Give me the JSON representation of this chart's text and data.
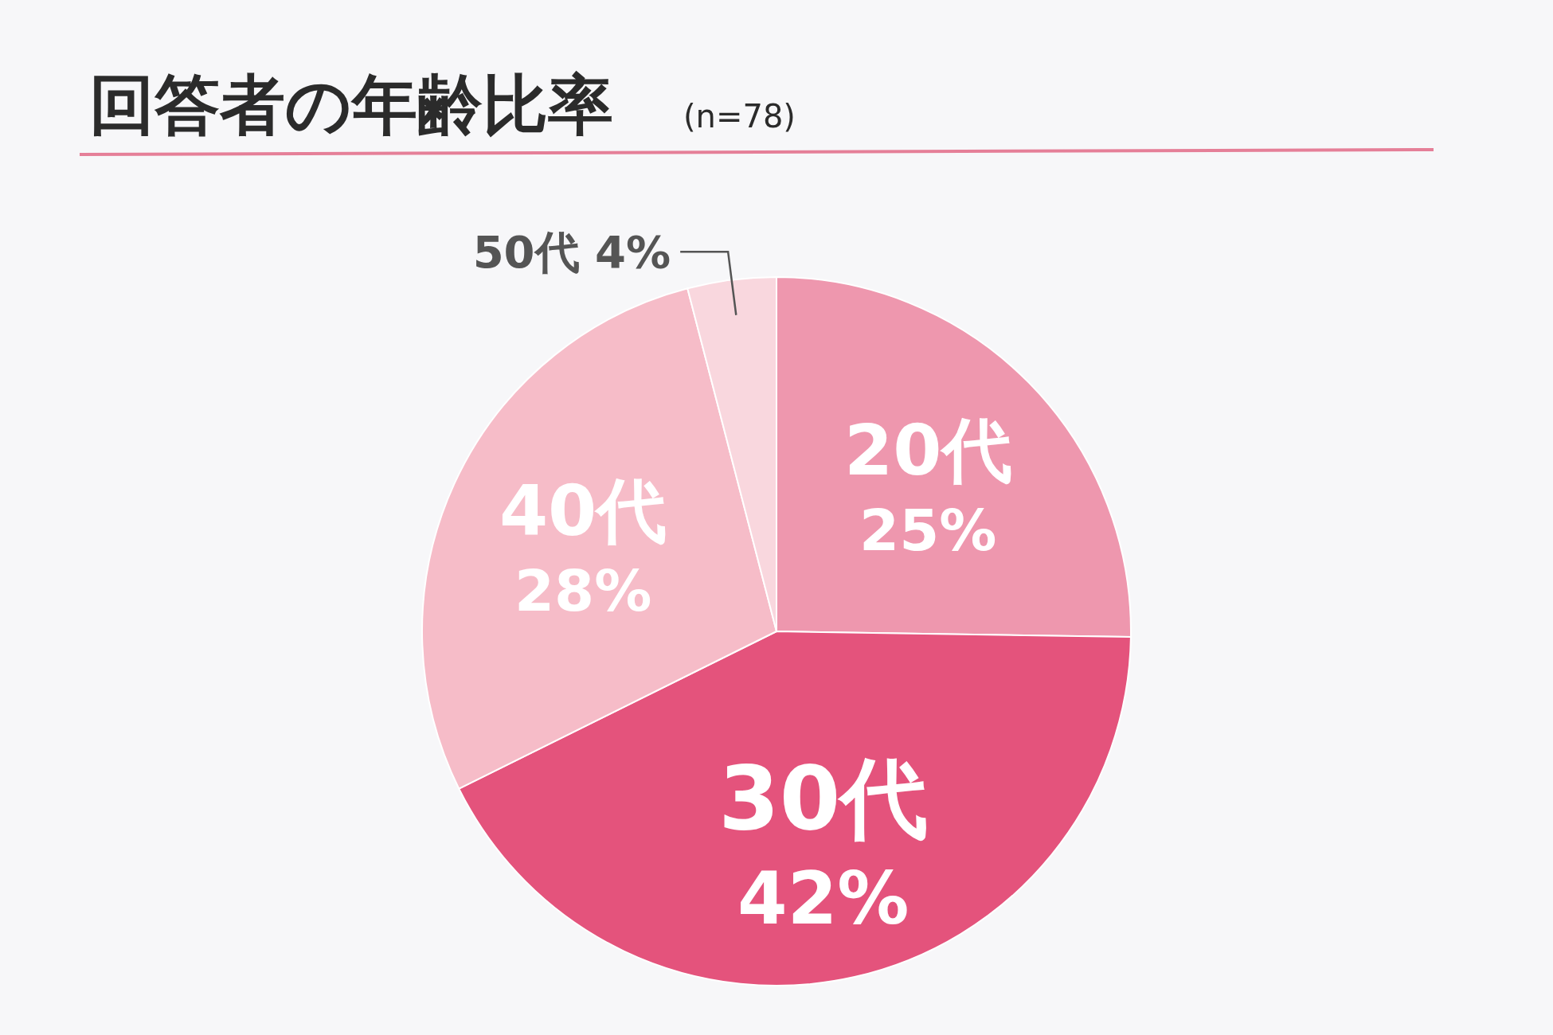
{
  "chart_data": {
    "type": "pie",
    "title": "回答者の年齢比率",
    "subtitle": "(n=78)",
    "categories": [
      "20代",
      "30代",
      "40代",
      "50代"
    ],
    "values": [
      25,
      42,
      28,
      4
    ],
    "value_labels": [
      "25%",
      "42%",
      "28%",
      "4%"
    ],
    "colors": [
      "#ee97ae",
      "#e4537c",
      "#f6bcc8",
      "#f9d7de"
    ]
  }
}
